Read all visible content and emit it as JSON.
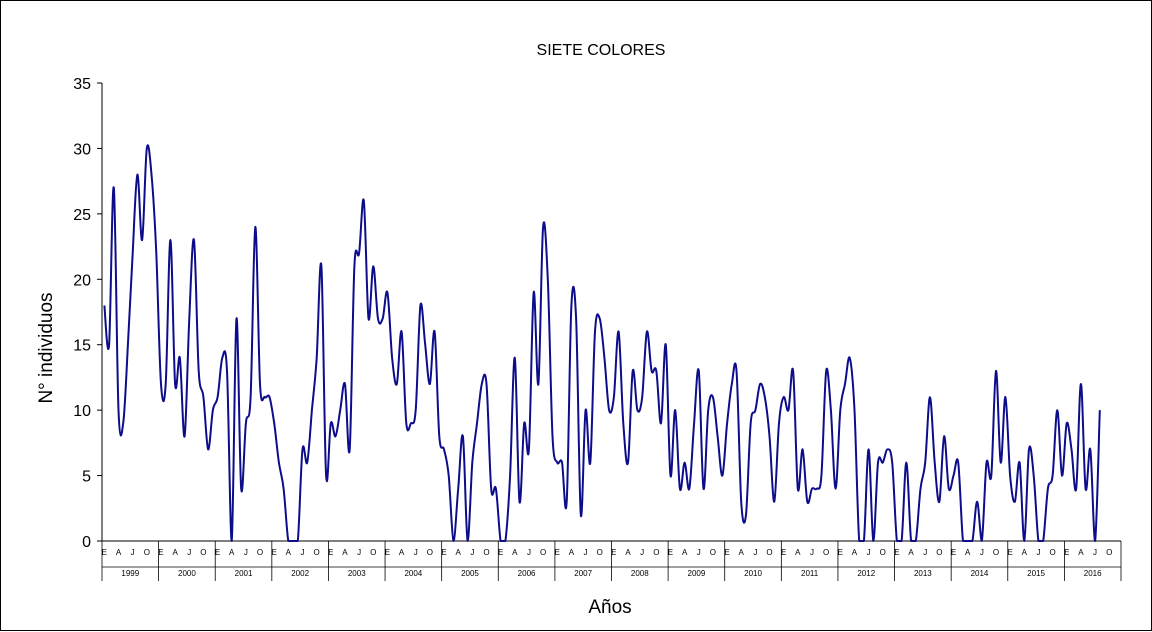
{
  "chart_data": {
    "type": "line",
    "title": "SIETE COLORES",
    "xlabel": "Años",
    "ylabel": "N° individuos",
    "ylim": [
      0,
      35
    ],
    "yticks": [
      "0",
      "5",
      "10",
      "15",
      "20",
      "25",
      "30",
      "35"
    ],
    "grid": false,
    "legend": "none",
    "line_color": "#0d0d8c",
    "month_tick_labels": [
      "E",
      "A",
      "J",
      "O"
    ],
    "years": [
      "1999",
      "2000",
      "2001",
      "2002",
      "2003",
      "2004",
      "2005",
      "2006",
      "2007",
      "2008",
      "2009",
      "2010",
      "2011",
      "2012",
      "2013",
      "2014",
      "2015",
      "2016"
    ],
    "series": [
      {
        "values": [
          18,
          15,
          27,
          10,
          9,
          15,
          22,
          28,
          23,
          30,
          28,
          22,
          12,
          12,
          23,
          12,
          14,
          8,
          17,
          23,
          13,
          11,
          7,
          10,
          11,
          14,
          13,
          0,
          17,
          4,
          9,
          11,
          24,
          12,
          11,
          11,
          9,
          6,
          4,
          0,
          0,
          0,
          7,
          6,
          10,
          14,
          21,
          5,
          9,
          8,
          10,
          12,
          7,
          21,
          22,
          26,
          17,
          21,
          17,
          17,
          19,
          14,
          12,
          16,
          9,
          9,
          10,
          18,
          15,
          12,
          16,
          8,
          7,
          5,
          0,
          4,
          8,
          0,
          6,
          9,
          12,
          12,
          4,
          4,
          0,
          0,
          5,
          14,
          3,
          9,
          7,
          19,
          12,
          24,
          20,
          8,
          6,
          6,
          3,
          18,
          17,
          2,
          10,
          6,
          16,
          17,
          14,
          10,
          11,
          16,
          9,
          6,
          13,
          10,
          11,
          16,
          13,
          13,
          9,
          15,
          5,
          10,
          4,
          6,
          4,
          9,
          13,
          4,
          10,
          11,
          8,
          5,
          9,
          12,
          13,
          3,
          2,
          9,
          10,
          12,
          11,
          8,
          3,
          9,
          11,
          10,
          13,
          4,
          7,
          3,
          4,
          4,
          5,
          13,
          10,
          4,
          10,
          12,
          14,
          10,
          0,
          0,
          7,
          0,
          6,
          6,
          7,
          6,
          0,
          0,
          6,
          0,
          0,
          4,
          6,
          11,
          6,
          3,
          8,
          4,
          5,
          6,
          0,
          0,
          0,
          3,
          0,
          6,
          5,
          13,
          6,
          11,
          5,
          3,
          6,
          0,
          7,
          5,
          0,
          0,
          4,
          5,
          10,
          5,
          9,
          7,
          4,
          12,
          4,
          7,
          0,
          10
        ]
      }
    ]
  }
}
